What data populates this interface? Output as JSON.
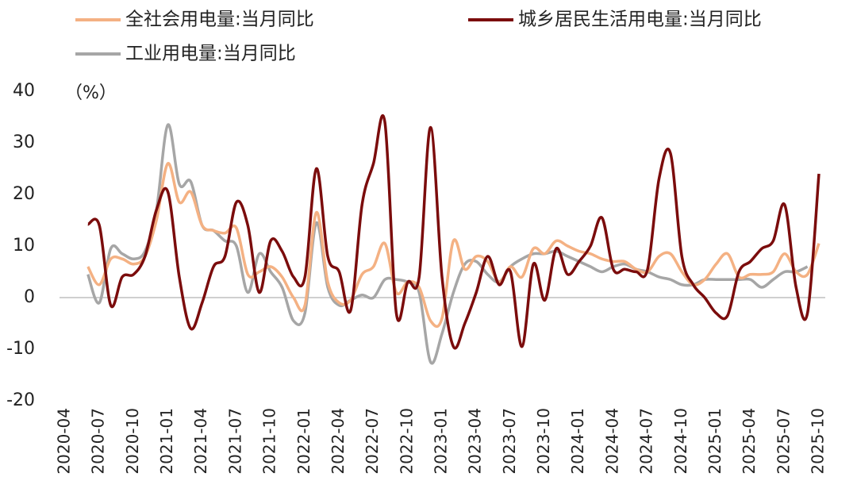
{
  "chart_data": {
    "type": "line",
    "y_label": "（%）",
    "categories": [
      "2020-04",
      null,
      null,
      "2020-07",
      null,
      null,
      "2020-10",
      null,
      null,
      "2021-01",
      null,
      null,
      "2021-04",
      null,
      null,
      "2021-07",
      null,
      null,
      "2021-10",
      null,
      null,
      "2022-01",
      null,
      null,
      "2022-04",
      null,
      null,
      "2022-07",
      null,
      null,
      "2022-10",
      null,
      null,
      "2023-01",
      null,
      null,
      "2023-04",
      null,
      null,
      "2023-07",
      null,
      null,
      "2023-10",
      null,
      null,
      "2024-01",
      null,
      null,
      "2024-04",
      null,
      null,
      "2024-07",
      null,
      null,
      "2024-10",
      null,
      null,
      "2025-01",
      null,
      null,
      "2025-04",
      null,
      null,
      "2025-07",
      null,
      null,
      "2025-10"
    ],
    "series": [
      {
        "name": "全社会用电量:当月同比",
        "color": "#f4b183",
        "values": [
          null,
          null,
          6,
          2.5,
          7.5,
          7.5,
          6.5,
          8,
          15,
          26,
          18.5,
          20.5,
          14,
          13,
          12.5,
          13.5,
          4.5,
          5,
          6,
          4,
          0,
          -1.5,
          16.5,
          3,
          -1,
          -0.5,
          4.5,
          6,
          10.5,
          1,
          3,
          2,
          -4.5,
          -4,
          11,
          5.5,
          8,
          7,
          3,
          6,
          4,
          9.5,
          8.5,
          11,
          10,
          9,
          8.5,
          7.5,
          7,
          7,
          5.5,
          5,
          8,
          8.5,
          5,
          2.5,
          3.5,
          6.5,
          8.5,
          4,
          4.5,
          4.5,
          5,
          8.5,
          5,
          4.5,
          10.5
        ]
      },
      {
        "name": "城乡居民生活用电量:当月同比",
        "color": "#7b0c0c",
        "values": [
          null,
          null,
          14.2,
          14,
          -1.5,
          4,
          4.5,
          8,
          17,
          20.5,
          4,
          -6,
          -1,
          6,
          8,
          18.5,
          14,
          1,
          11,
          9,
          4,
          4,
          25,
          8,
          5,
          -2.5,
          18,
          26,
          34,
          -3,
          3,
          4,
          33,
          4,
          -9.5,
          -5,
          1,
          8,
          2.5,
          5,
          -9.5,
          6.5,
          -0.5,
          9.5,
          4.5,
          7,
          10,
          15.5,
          5.5,
          5.5,
          5,
          5.5,
          23,
          28,
          8,
          2.5,
          0,
          -3,
          -3.5,
          5,
          7,
          9.5,
          11,
          18,
          2,
          -3,
          24
        ]
      },
      {
        "name": "工业用电量:当月同比",
        "color": "#a6a6a6",
        "values": [
          null,
          null,
          4.5,
          -1,
          9.5,
          8.5,
          7.5,
          9,
          17,
          33.5,
          22,
          22.5,
          14,
          13,
          11,
          10,
          1,
          8.5,
          5,
          2,
          -4.5,
          -3,
          14.5,
          2,
          -1.5,
          -0.5,
          0.5,
          0,
          3.5,
          3.5,
          3,
          1,
          -12.5,
          -7,
          1,
          6.5,
          7,
          4.5,
          3,
          6,
          7.5,
          8.5,
          8.5,
          9,
          8,
          7,
          6,
          5,
          6,
          6.5,
          5.5,
          5,
          4,
          3.5,
          2.5,
          2.5,
          3.5,
          3.5,
          3.5,
          3.5,
          3.5,
          2,
          3.5,
          5,
          5,
          6,
          null
        ]
      }
    ],
    "ylim": [
      -20,
      40
    ],
    "yticks": [
      -20,
      -10,
      0,
      10,
      20,
      30,
      40
    ]
  }
}
